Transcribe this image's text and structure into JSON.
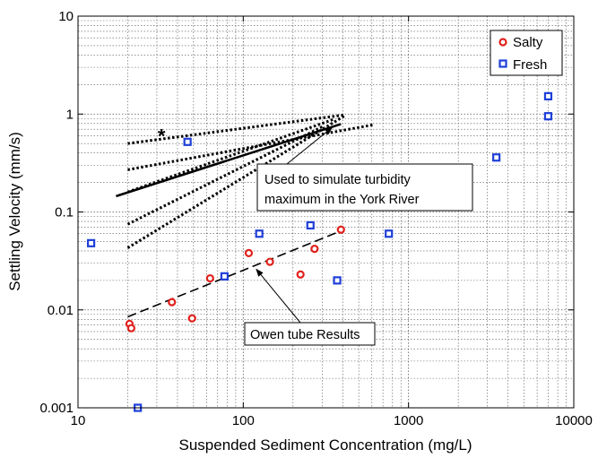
{
  "chart_data": {
    "type": "scatter",
    "title": "",
    "xlabel": "Suspended Sediment Concentration (mg/L)",
    "ylabel": "Settling Velocity (mm/s)",
    "x_scale": "log",
    "y_scale": "log",
    "xlim": [
      10,
      10000
    ],
    "ylim": [
      0.001,
      10
    ],
    "x_ticks": [
      "10",
      "100",
      "1000",
      "10000"
    ],
    "y_ticks": [
      "10",
      "1",
      "0.1",
      "0.01",
      "0.001"
    ],
    "grid": true,
    "legend_position": "top-right",
    "series": [
      {
        "name": "Salty",
        "color": "#e0201b",
        "marker": "open-circle",
        "points": [
          [
            20.5,
            0.0072
          ],
          [
            21,
            0.0065
          ],
          [
            37,
            0.012
          ],
          [
            49,
            0.0082
          ],
          [
            63,
            0.021
          ],
          [
            108,
            0.038
          ],
          [
            145,
            0.031
          ],
          [
            222,
            0.023
          ],
          [
            270,
            0.042
          ],
          [
            390,
            0.066
          ]
        ]
      },
      {
        "name": "Fresh",
        "color": "#1f3fd8",
        "marker": "open-square",
        "points": [
          [
            12,
            0.048
          ],
          [
            23,
            0.001
          ],
          [
            46,
            0.52
          ],
          [
            77,
            0.022
          ],
          [
            125,
            0.06
          ],
          [
            255,
            0.073
          ],
          [
            370,
            0.02
          ],
          [
            760,
            0.06
          ],
          [
            3400,
            0.36
          ],
          [
            7000,
            1.52
          ],
          [
            7000,
            0.95
          ]
        ]
      }
    ],
    "lines": [
      {
        "name": "Owen tube fit",
        "style": "dashed",
        "color": "#000000",
        "points": [
          [
            20,
            0.0085
          ],
          [
            390,
            0.064
          ]
        ]
      },
      {
        "name": "York River fit",
        "style": "solid",
        "color": "#000000",
        "points": [
          [
            17,
            0.145
          ],
          [
            390,
            0.79
          ]
        ]
      },
      {
        "style": "dotted",
        "color": "#000000",
        "points": [
          [
            20,
            0.5
          ],
          [
            410,
            0.98
          ]
        ]
      },
      {
        "style": "dotted",
        "color": "#000000",
        "points": [
          [
            20,
            0.27
          ],
          [
            620,
            0.78
          ]
        ]
      },
      {
        "style": "dotted",
        "color": "#000000",
        "points": [
          [
            20,
            0.16
          ],
          [
            350,
            0.88
          ]
        ]
      },
      {
        "style": "dotted",
        "color": "#000000",
        "points": [
          [
            20,
            0.075
          ],
          [
            300,
            0.74
          ]
        ]
      },
      {
        "style": "dotted",
        "color": "#000000",
        "points": [
          [
            20,
            0.043
          ],
          [
            410,
            0.96
          ]
        ]
      }
    ],
    "extra_markers": [
      {
        "symbol": "*",
        "x": 32,
        "y": 0.61
      }
    ],
    "annotations": [
      {
        "text_lines": [
          "Used to simulate turbidity",
          "maximum in the York River"
        ],
        "arrow_to": [
          345,
          0.73
        ]
      },
      {
        "text_lines": [
          "Owen tube Results"
        ],
        "arrow_to": [
          120,
          0.026
        ]
      }
    ],
    "legend": [
      {
        "label": "Salty",
        "marker": "open-circle",
        "color": "#e0201b"
      },
      {
        "label": "Fresh",
        "marker": "open-square",
        "color": "#1f3fd8"
      }
    ]
  }
}
